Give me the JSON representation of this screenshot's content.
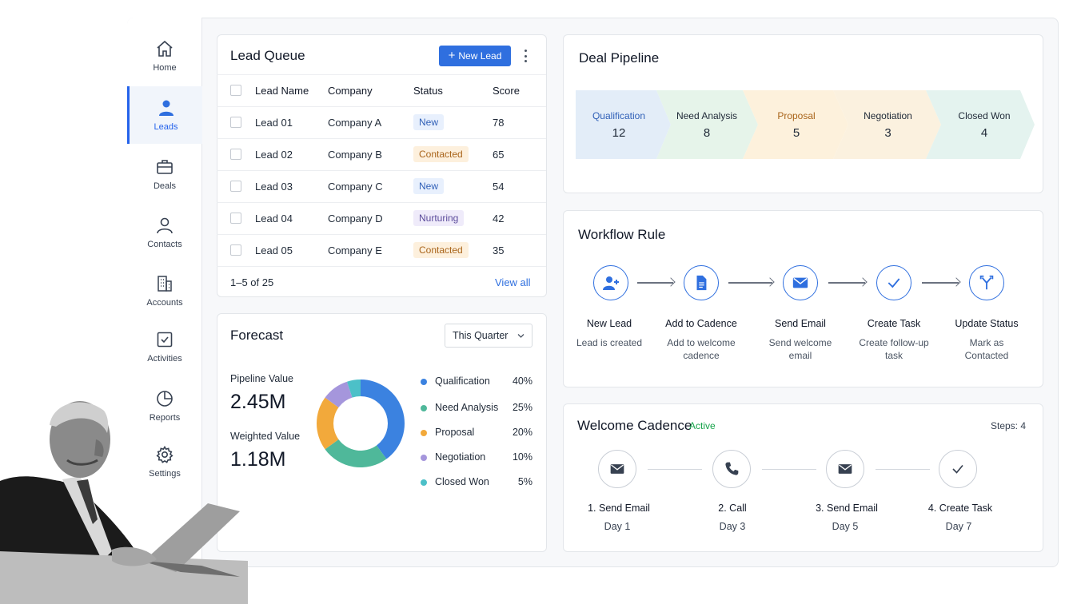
{
  "colors": {
    "accent": "#2f6fdf",
    "active_badge": "#16a34a"
  },
  "sidebar": {
    "items": [
      {
        "label": "Home",
        "icon": "home-icon"
      },
      {
        "label": "Leads",
        "icon": "person-icon",
        "active": true
      },
      {
        "label": "Deals",
        "icon": "briefcase-icon"
      },
      {
        "label": "Contacts",
        "icon": "contact-icon"
      },
      {
        "label": "Accounts",
        "icon": "building-icon"
      },
      {
        "label": "Activities",
        "icon": "checkbox-icon"
      },
      {
        "label": "Reports",
        "icon": "pie-chart-icon"
      },
      {
        "label": "Settings",
        "icon": "gear-icon"
      }
    ]
  },
  "lead_queue": {
    "title": "Lead Queue",
    "new_button": "New Lead",
    "columns": [
      "Lead Name",
      "Company",
      "Status",
      "Score"
    ],
    "rows": [
      {
        "name": "Lead 01",
        "company": "Company A",
        "status": "New",
        "score": "78"
      },
      {
        "name": "Lead 02",
        "company": "Company B",
        "status": "Contacted",
        "score": "65"
      },
      {
        "name": "Lead 03",
        "company": "Company C",
        "status": "New",
        "score": "54"
      },
      {
        "name": "Lead 04",
        "company": "Company D",
        "status": "Nurturing",
        "score": "42"
      },
      {
        "name": "Lead 05",
        "company": "Company E",
        "status": "Contacted",
        "score": "35"
      }
    ],
    "pagination": "1–5 of 25",
    "view_all": "View all"
  },
  "forecast": {
    "title": "Forecast",
    "period_select": "This Quarter",
    "pipeline_label": "Pipeline Value",
    "pipeline_value": "2.45M",
    "weighted_label": "Weighted Value",
    "weighted_value": "1.18M",
    "segments": [
      {
        "name": "Qualification",
        "pct": "40%",
        "value": 40,
        "color": "#3b82e0"
      },
      {
        "name": "Need Analysis",
        "pct": "25%",
        "value": 25,
        "color": "#4fb89a"
      },
      {
        "name": "Proposal",
        "pct": "20%",
        "value": 20,
        "color": "#f2a93b"
      },
      {
        "name": "Negotiation",
        "pct": "10%",
        "value": 10,
        "color": "#a596dc"
      },
      {
        "name": "Closed Won",
        "pct": "5%",
        "value": 5,
        "color": "#4cc0c8"
      }
    ]
  },
  "deal_pipeline": {
    "title": "Deal Pipeline",
    "stages": [
      {
        "name": "Qualification",
        "count": "12",
        "bg": "#e3edf8",
        "fg": "#2f5fb7"
      },
      {
        "name": "Need Analysis",
        "count": "8",
        "bg": "#e6f4ea",
        "fg": "#1f2937"
      },
      {
        "name": "Proposal",
        "count": "5",
        "bg": "#fdf1dc",
        "fg": "#a9641a"
      },
      {
        "name": "Negotiation",
        "count": "3",
        "bg": "#fbf1df",
        "fg": "#1f2937"
      },
      {
        "name": "Closed Won",
        "count": "4",
        "bg": "#e4f3ef",
        "fg": "#1f2937"
      }
    ]
  },
  "workflow": {
    "title": "Workflow Rule",
    "steps": [
      {
        "title": "New Lead",
        "sub": "Lead is created",
        "icon": "add-user-icon"
      },
      {
        "title": "Add to Cadence",
        "sub": "Add to welcome cadence",
        "icon": "document-icon"
      },
      {
        "title": "Send Email",
        "sub": "Send welcome email",
        "icon": "envelope-icon"
      },
      {
        "title": "Create Task",
        "sub": "Create follow-up task",
        "icon": "check-icon"
      },
      {
        "title": "Update Status",
        "sub": "Mark as Contacted",
        "icon": "branch-icon"
      }
    ]
  },
  "cadence": {
    "title": "Welcome Cadence",
    "status": "Active",
    "steps_label": "Steps: 4",
    "steps": [
      {
        "title": "1.  Send Email",
        "day": "Day 1",
        "icon": "envelope-icon"
      },
      {
        "title": "2.  Call",
        "day": "Day 3",
        "icon": "phone-icon"
      },
      {
        "title": "3.  Send Email",
        "day": "Day 5",
        "icon": "envelope-icon"
      },
      {
        "title": "4.  Create Task",
        "day": "Day 7",
        "icon": "check-icon"
      }
    ]
  }
}
